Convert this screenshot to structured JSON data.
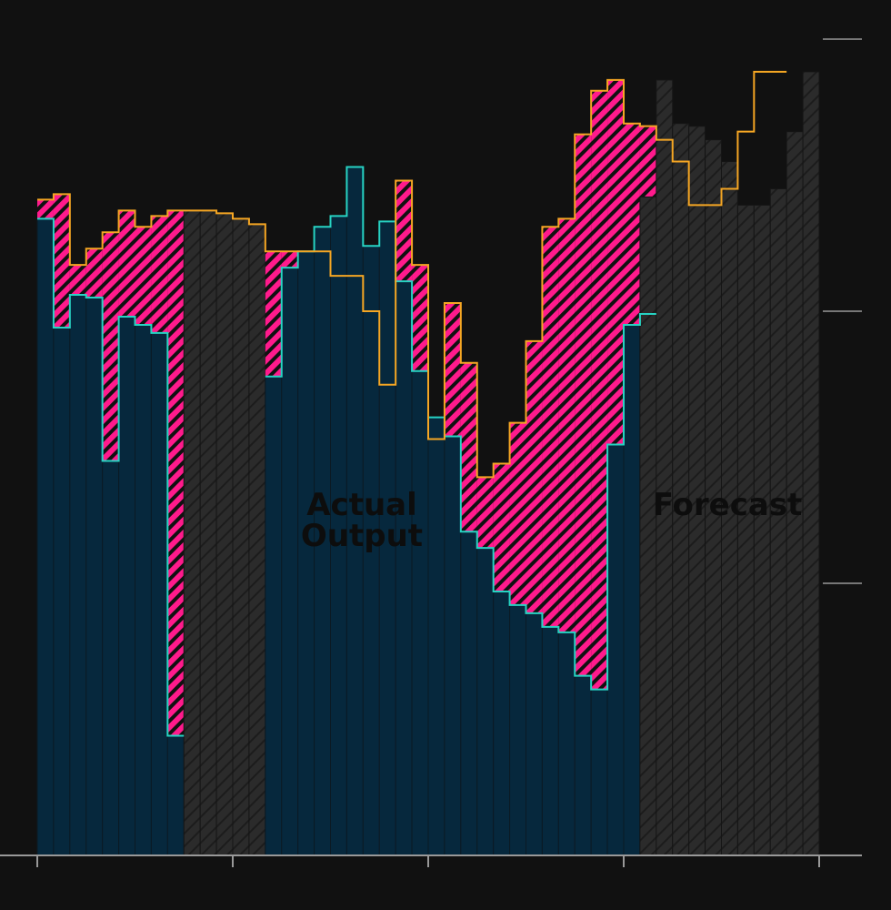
{
  "chart_data": {
    "type": "area",
    "title": "",
    "xlabel": "",
    "ylabel": "",
    "xlim": [
      0,
      48
    ],
    "ylim": [
      0,
      3
    ],
    "y_ticks": [
      1,
      2,
      3
    ],
    "x_ticks": [
      0,
      12,
      24,
      36,
      48
    ],
    "grid": false,
    "annotations": [
      "Actual",
      "Output",
      "Forecast"
    ],
    "colors": {
      "background": "#111111",
      "actual_fill": "#06283d",
      "actual_line": "#27d3c3",
      "gap_fill": "#ff1a8c",
      "potential_line": "#f5a623",
      "forecast_fill": "#2b2b2b",
      "axis": "#999999"
    },
    "series": [
      {
        "name": "",
        "role": "potential",
        "values": [
          2.41,
          2.43,
          2.17,
          2.23,
          2.29,
          2.37,
          2.31,
          2.35,
          2.37,
          2.37,
          2.37,
          2.36,
          2.34,
          2.32,
          2.22,
          2.22,
          2.22,
          2.22,
          2.13,
          2.13,
          2.0,
          1.73,
          2.48,
          2.17,
          1.53,
          2.03,
          1.81,
          1.39,
          1.44,
          1.59,
          1.89,
          2.31,
          2.34,
          2.65,
          2.81,
          2.85,
          2.69,
          2.68,
          2.63,
          2.55,
          2.39,
          2.39,
          2.45,
          2.66,
          2.88,
          2.88
        ]
      },
      {
        "name": "",
        "role": "actual",
        "values": [
          2.34,
          1.94,
          2.06,
          2.05,
          1.45,
          1.98,
          1.95,
          1.92,
          0.44,
          null,
          null,
          null,
          null,
          null,
          1.76,
          2.16,
          2.22,
          2.31,
          2.35,
          2.53,
          2.24,
          2.33,
          2.11,
          1.78,
          1.61,
          1.54,
          1.19,
          1.13,
          0.97,
          0.92,
          0.89,
          0.84,
          0.82,
          0.66,
          0.61,
          1.51,
          1.95,
          1.99
        ]
      },
      {
        "name": "",
        "role": "forecast",
        "values": [
          null,
          null,
          null,
          null,
          null,
          null,
          null,
          null,
          null,
          2.37,
          2.37,
          2.36,
          2.34,
          2.32,
          null,
          null,
          null,
          null,
          null,
          null,
          null,
          null,
          null,
          null,
          null,
          null,
          null,
          null,
          null,
          null,
          null,
          null,
          null,
          null,
          null,
          null,
          null,
          2.42,
          2.85,
          2.69,
          2.68,
          2.63,
          2.55,
          2.39,
          2.39,
          2.45,
          2.66,
          2.88
        ]
      }
    ]
  }
}
